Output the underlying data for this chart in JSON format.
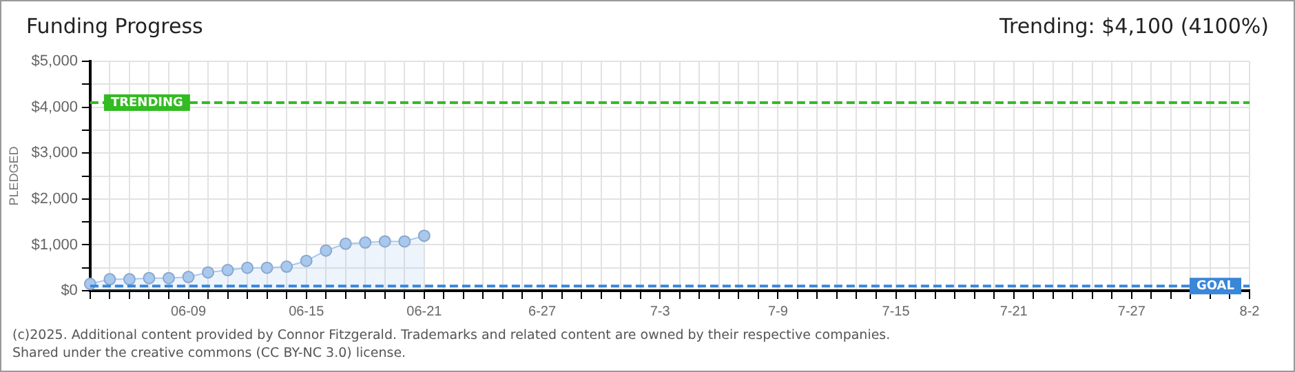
{
  "chart_data": {
    "type": "area",
    "title": "Funding Progress",
    "subtitle": "Trending: $4,100 (4100%)",
    "ylabel": "PLEDGED",
    "categories": [
      null,
      null,
      null,
      null,
      null,
      "06-09",
      null,
      null,
      null,
      null,
      null,
      "06-15",
      null,
      null,
      null,
      null,
      null,
      "06-21",
      null,
      null,
      null,
      null,
      null,
      "6-27",
      null,
      null,
      null,
      null,
      null,
      "7-3",
      null,
      null,
      null,
      null,
      null,
      "7-9",
      null,
      null,
      null,
      null,
      null,
      "7-15",
      null,
      null,
      null,
      null,
      null,
      "7-21",
      null,
      null,
      null,
      null,
      null,
      "7-27",
      null,
      null,
      null,
      null,
      null,
      "8-2"
    ],
    "series": [
      {
        "color": "#a9c8ee",
        "values": [
          150,
          250,
          250,
          275,
          275,
          300,
          400,
          450,
          500,
          500,
          525,
          650,
          875,
          1025,
          1050,
          1075,
          1075,
          1200,
          null,
          null,
          null,
          null,
          null,
          null,
          null,
          null,
          null,
          null,
          null,
          null,
          null,
          null,
          null,
          null,
          null,
          null,
          null,
          null,
          null,
          null,
          null,
          null,
          null,
          null,
          null,
          null,
          null,
          null,
          null,
          null,
          null,
          null,
          null,
          null,
          null,
          null,
          null,
          null,
          null,
          null
        ]
      }
    ],
    "ylim": [
      0,
      5000
    ],
    "yticks": [
      {
        "value": 0,
        "label": "$0"
      },
      {
        "value": 500,
        "label": null
      },
      {
        "value": 1000,
        "label": "$1,000"
      },
      {
        "value": 1500,
        "label": null
      },
      {
        "value": 2000,
        "label": "$2,000"
      },
      {
        "value": 2500,
        "label": null
      },
      {
        "value": 3000,
        "label": "$3,000"
      },
      {
        "value": 3500,
        "label": null
      },
      {
        "value": 4000,
        "label": "$4,000"
      },
      {
        "value": 4500,
        "label": null
      },
      {
        "value": 5000,
        "label": "$5,000"
      }
    ],
    "ref_lines": [
      {
        "axis": "y",
        "value": 4100,
        "label": "TRENDING",
        "color": "#33bb22",
        "line_style": "dashed"
      },
      {
        "axis": "y",
        "value": 100,
        "label": "GOAL",
        "color": "#3a86d8",
        "line_style": "dashed"
      }
    ],
    "annotations": [
      "(c)2025. Additional content provided by Connor Fitzgerald. Trademarks and related content are owned by their respective companies.",
      "Shared under the creative commons (CC BY-NC 3.0) license."
    ],
    "grid": true,
    "legend": false,
    "marker": "circle",
    "line_style": "solid"
  }
}
